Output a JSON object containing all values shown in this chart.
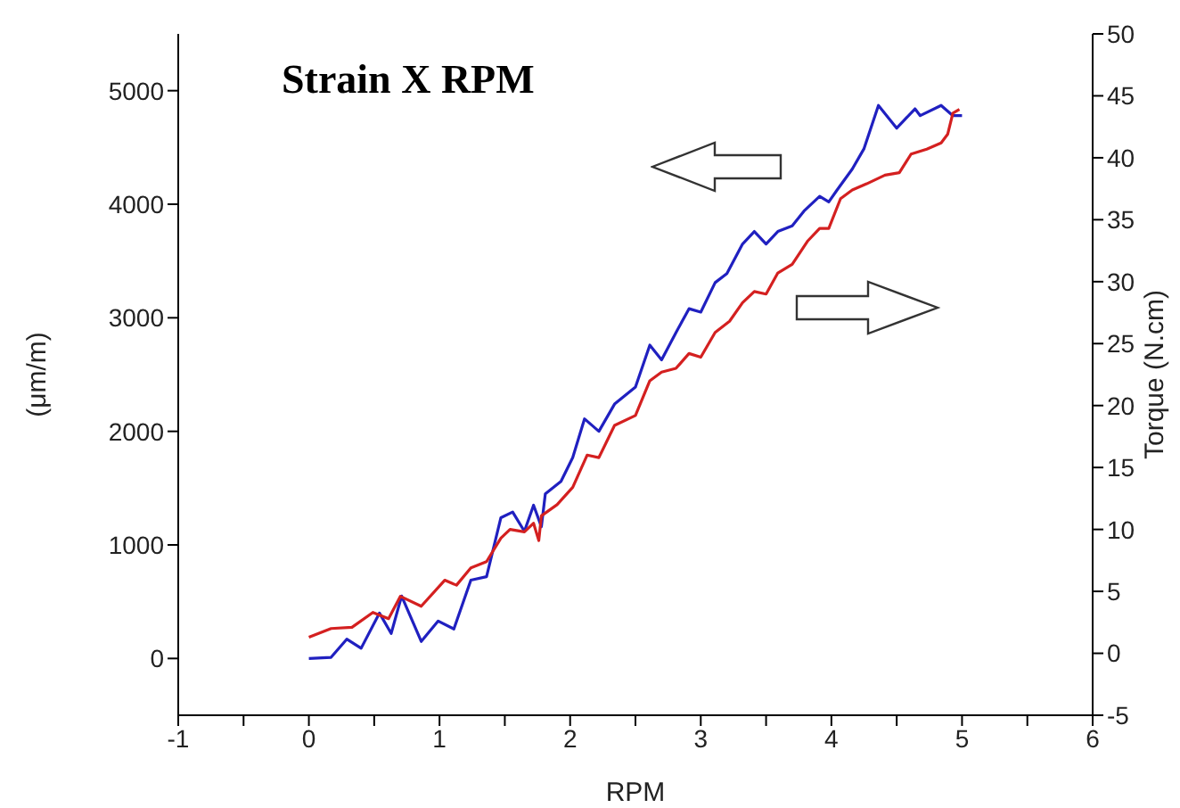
{
  "chart_data": {
    "type": "line",
    "title": "Strain X RPM",
    "xlabel": "RPM",
    "ylabel": "(μm/m)",
    "y2label": "Torque (N.cm)",
    "xlim": [
      -1,
      6
    ],
    "xticks": [
      -1,
      {
        "value": -0.5,
        "label": null
      },
      0,
      {
        "value": 0.5,
        "label": null
      },
      1,
      {
        "value": 1.5,
        "label": null
      },
      2,
      {
        "value": 2.5,
        "label": null
      },
      3,
      {
        "value": 3.5,
        "label": null
      },
      4,
      {
        "value": 4.5,
        "label": null
      },
      5,
      {
        "value": 5.5,
        "label": null
      },
      6
    ],
    "ylim": [
      -500,
      5500
    ],
    "yticks": [
      0,
      1000,
      2000,
      3000,
      4000,
      5000
    ],
    "y2lim": [
      -5,
      50
    ],
    "y2ticks": [
      -5,
      0,
      5,
      10,
      15,
      20,
      25,
      30,
      35,
      40,
      45,
      50
    ],
    "marker": "none",
    "line_style": "solid",
    "series": [
      {
        "color": "#2020c0",
        "x": [
          0,
          0.17,
          0.29,
          0.4,
          0.54,
          0.63,
          0.71,
          0.86,
          0.99,
          1.11,
          1.24,
          1.36,
          1.47,
          1.56,
          1.65,
          1.72,
          1.78,
          1.81,
          1.93,
          2.02,
          2.11,
          2.22,
          2.34,
          2.5,
          2.61,
          2.7,
          2.81,
          2.91,
          3.0,
          3.11,
          3.2,
          3.32,
          3.41,
          3.5,
          3.59,
          3.7,
          3.79,
          3.91,
          3.98,
          4.04,
          4.16,
          4.25,
          4.36,
          4.5,
          4.64,
          4.68,
          4.84,
          4.93,
          5.0
        ],
        "values": [
          0,
          10,
          170,
          90,
          400,
          220,
          550,
          150,
          330,
          260,
          690,
          720,
          1240,
          1290,
          1120,
          1350,
          1160,
          1450,
          1560,
          1770,
          2110,
          2000,
          2240,
          2390,
          2760,
          2630,
          2870,
          3080,
          3050,
          3310,
          3390,
          3650,
          3760,
          3650,
          3760,
          3810,
          3940,
          4070,
          4020,
          4120,
          4310,
          4490,
          4870,
          4670,
          4840,
          4780,
          4870,
          4780,
          4780
        ]
      },
      {
        "color": "#d42020",
        "axis": "y2",
        "x": [
          0,
          0.17,
          0.33,
          0.49,
          0.61,
          0.7,
          0.86,
          1.04,
          1.13,
          1.24,
          1.36,
          1.47,
          1.54,
          1.65,
          1.72,
          1.76,
          1.78,
          1.9,
          2.02,
          2.13,
          2.22,
          2.34,
          2.5,
          2.61,
          2.7,
          2.81,
          2.91,
          3.0,
          3.11,
          3.22,
          3.32,
          3.41,
          3.5,
          3.59,
          3.7,
          3.82,
          3.91,
          3.98,
          4.07,
          4.16,
          4.27,
          4.41,
          4.52,
          4.61,
          4.73,
          4.84,
          4.89,
          4.93,
          4.98
        ],
        "values": [
          1.3,
          2.0,
          2.1,
          3.3,
          2.8,
          4.6,
          3.8,
          5.9,
          5.5,
          6.9,
          7.4,
          9.3,
          10.0,
          9.8,
          10.5,
          9.1,
          11.1,
          12.0,
          13.4,
          16.0,
          15.8,
          18.4,
          19.2,
          22.0,
          22.7,
          23.0,
          24.2,
          23.9,
          25.9,
          26.8,
          28.3,
          29.2,
          29.0,
          30.7,
          31.4,
          33.3,
          34.3,
          34.3,
          36.7,
          37.4,
          37.9,
          38.6,
          38.8,
          40.3,
          40.7,
          41.2,
          41.9,
          43.6,
          43.9
        ]
      }
    ]
  }
}
